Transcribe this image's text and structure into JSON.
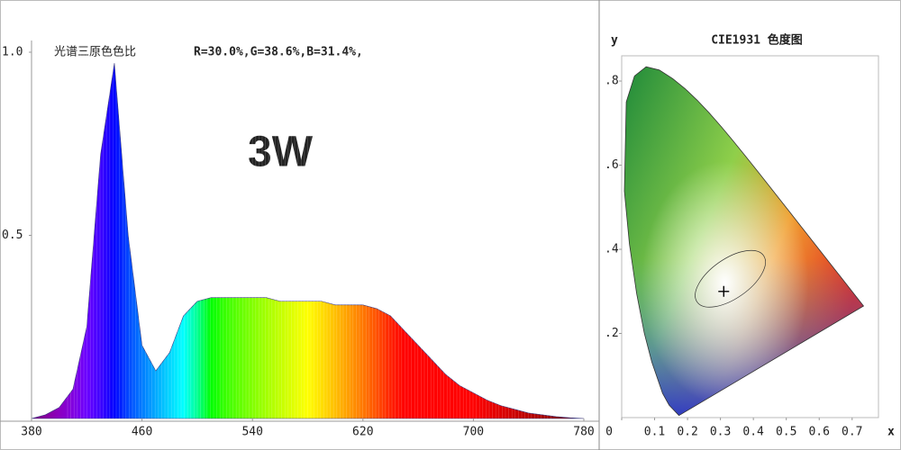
{
  "chart_data": [
    {
      "type": "spectrum",
      "title": "光谱三原色色比",
      "annotations": [
        "R=30.0%,G=38.6%,B=31.4%,",
        "3W"
      ],
      "x": [
        380,
        390,
        400,
        410,
        420,
        430,
        440,
        450,
        460,
        470,
        480,
        490,
        500,
        510,
        520,
        530,
        540,
        550,
        560,
        570,
        580,
        590,
        600,
        610,
        620,
        630,
        640,
        650,
        660,
        670,
        680,
        690,
        700,
        710,
        720,
        730,
        740,
        750,
        760,
        770,
        780
      ],
      "values": [
        0,
        0.01,
        0.03,
        0.08,
        0.25,
        0.72,
        0.97,
        0.5,
        0.2,
        0.13,
        0.18,
        0.28,
        0.32,
        0.33,
        0.33,
        0.33,
        0.33,
        0.33,
        0.32,
        0.32,
        0.32,
        0.32,
        0.31,
        0.31,
        0.31,
        0.3,
        0.28,
        0.24,
        0.2,
        0.16,
        0.12,
        0.09,
        0.07,
        0.05,
        0.035,
        0.025,
        0.015,
        0.01,
        0.005,
        0.002,
        0
      ],
      "xlim": [
        380,
        780
      ],
      "xticks": [
        380,
        460,
        540,
        620,
        700,
        780
      ],
      "ylim": [
        0,
        1.0
      ],
      "yticks": [
        0.5,
        {
          "value": 1.0,
          "label": "1.0"
        }
      ]
    },
    {
      "type": "cie",
      "title": "CIE1931 色度图",
      "xlabel": "x",
      "ylabel": "y",
      "x": [
        0.1741,
        0.144,
        0.1241,
        0.0913,
        0.0687,
        0.0454,
        0.0235,
        0.0082,
        0.0139,
        0.0389,
        0.0743,
        0.1142,
        0.1547,
        0.1929,
        0.2296,
        0.2658,
        0.3016,
        0.3373,
        0.3731,
        0.4087,
        0.4441,
        0.4788,
        0.5125,
        0.5448,
        0.5752,
        0.6029,
        0.627,
        0.6482,
        0.6658,
        0.7347
      ],
      "y": [
        0.005,
        0.0297,
        0.0578,
        0.1327,
        0.2007,
        0.295,
        0.4127,
        0.5384,
        0.7502,
        0.812,
        0.8338,
        0.8262,
        0.8059,
        0.7816,
        0.7543,
        0.7243,
        0.6923,
        0.6589,
        0.6245,
        0.5896,
        0.5547,
        0.5202,
        0.4866,
        0.4544,
        0.4242,
        0.3965,
        0.3725,
        0.3514,
        0.334,
        0.2653
      ],
      "point": {
        "x": 0.31,
        "y": 0.3
      },
      "xlim": [
        0,
        0.78
      ],
      "xticks": [
        0,
        0.1,
        0.2,
        0.3,
        0.4,
        0.5,
        0.6,
        0.7
      ],
      "ylim": [
        0,
        0.86
      ],
      "yticks": [
        {
          "value": 0.2,
          "label": ".2"
        },
        {
          "value": 0.4,
          "label": ".4"
        },
        {
          "value": 0.6,
          "label": ".6"
        },
        {
          "value": 0.8,
          "label": ".8"
        }
      ]
    }
  ]
}
